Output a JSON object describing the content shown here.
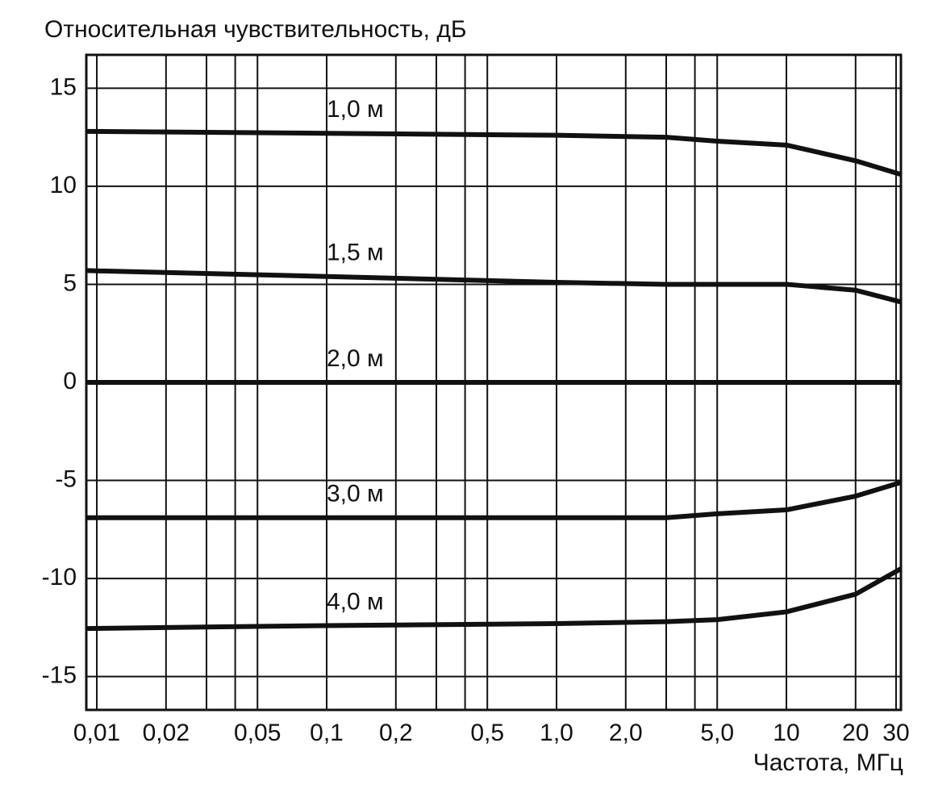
{
  "chart_data": {
    "type": "line",
    "y_label": "Относительная чувствительность, дБ",
    "x_label": "Частота, МГц",
    "log_x": true,
    "grid": true,
    "color": "#111111",
    "x": [
      0.009,
      0.1,
      1,
      3,
      5,
      10,
      20,
      31.5
    ],
    "series": [
      {
        "name": "1,0 м",
        "color": "#111111",
        "values": [
          12.8,
          12.7,
          12.6,
          12.5,
          12.3,
          12.1,
          11.3,
          10.6
        ]
      },
      {
        "name": "1,5 м",
        "color": "#111111",
        "values": [
          5.7,
          5.4,
          5.1,
          5.0,
          5.0,
          5.0,
          4.7,
          4.1
        ]
      },
      {
        "name": "2,0 м",
        "color": "#111111",
        "values": [
          0,
          0,
          0,
          0,
          0,
          0,
          0,
          0
        ]
      },
      {
        "name": "3,0 м",
        "color": "#111111",
        "values": [
          -6.9,
          -6.9,
          -6.9,
          -6.9,
          -6.7,
          -6.5,
          -5.8,
          -5.1
        ]
      },
      {
        "name": "4,0 м",
        "color": "#111111",
        "values": [
          -12.55,
          -12.4,
          -12.3,
          -12.2,
          -12.1,
          -11.7,
          -10.8,
          -9.5
        ]
      }
    ],
    "xlim": [
      0.009,
      31.5
    ],
    "ylim": [
      -16.7,
      16.7
    ],
    "yticks": [
      15,
      10,
      5,
      0,
      -5,
      -10,
      -15
    ],
    "xticks": [
      {
        "value": 0.01,
        "label": "0,01"
      },
      {
        "value": 0.02,
        "label": "0,02"
      },
      {
        "value": 0.05,
        "label": "0,05"
      },
      {
        "value": 0.1,
        "label": "0,1"
      },
      {
        "value": 0.2,
        "label": "0,2"
      },
      {
        "value": 0.5,
        "label": "0,5"
      },
      {
        "value": 1,
        "label": "1,0"
      },
      {
        "value": 2,
        "label": "2,0"
      },
      {
        "value": 5,
        "label": "5,0"
      },
      10,
      20,
      30
    ],
    "x_minor_ticks": [
      0.03,
      0.04,
      0.3,
      0.4,
      3,
      4
    ]
  }
}
